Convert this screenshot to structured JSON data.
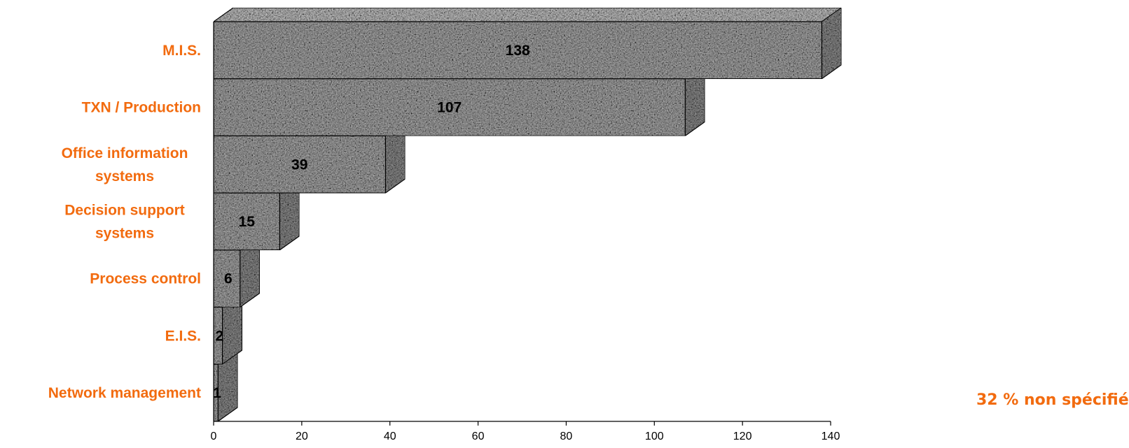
{
  "chart_data": {
    "type": "bar",
    "orientation": "horizontal",
    "style": "3d-textured",
    "categories": [
      [
        "M.I.S."
      ],
      [
        "TXN / Production"
      ],
      [
        "Office information",
        "systems"
      ],
      [
        "Decision support",
        "systems"
      ],
      [
        "Process control"
      ],
      [
        "E.I.S."
      ],
      [
        "Network management"
      ]
    ],
    "values": [
      138,
      107,
      39,
      15,
      6,
      2,
      1
    ],
    "data_labels": [
      "138",
      "107",
      "39",
      "15",
      "6",
      "2",
      "1"
    ],
    "xlim": [
      0,
      140
    ],
    "x_ticks": [
      0,
      20,
      40,
      60,
      80,
      100,
      120,
      140
    ],
    "title": "",
    "xlabel": "",
    "ylabel": "",
    "grid": false,
    "legend": "none"
  },
  "annotation": {
    "text": "32 % non spécifié"
  },
  "colors": {
    "category_label": "#f26b0f",
    "annotation": "#f26b0f",
    "bar_front": "#a8a8a8",
    "bar_top": "#c2c2c2",
    "bar_side": "#8c8c8c",
    "bar_edge": "#000000",
    "axis": "#000000"
  }
}
